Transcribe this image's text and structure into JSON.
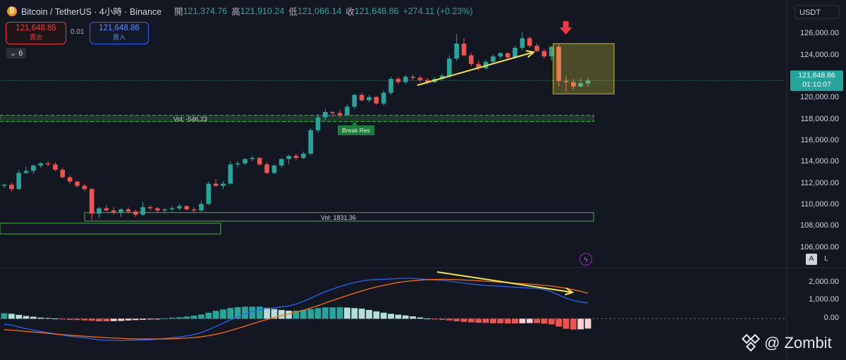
{
  "header": {
    "symbol": "Bitcoin / TetherUS · 4小時 · Binance",
    "open_label": "開",
    "open": "121,374.76",
    "high_label": "高",
    "high": "121,910.24",
    "low_label": "低",
    "low": "121,066.14",
    "close_label": "收",
    "close": "121,648.86",
    "change": "+274.11 (+0.23%)"
  },
  "trade": {
    "sell_price": "121,648.85",
    "sell_label": "賣出",
    "spread": "0.01",
    "buy_price": "121,648.86",
    "buy_label": "買入"
  },
  "indicators_count": "6",
  "currency": "USDT",
  "last_price": {
    "price": "121,648.86",
    "countdown": "01:10:07"
  },
  "scale_buttons": {
    "auto": "A",
    "log": "L"
  },
  "watermark": "@ Zombit",
  "colors": {
    "up": "#26a69a",
    "down": "#ef5350",
    "macd": "#2962ff",
    "signal": "#ff6d00",
    "annotation": "#f5e642",
    "zone": "#4caf50"
  },
  "chart_data": [
    {
      "type": "candlestick",
      "title": "Bitcoin / TetherUS · 4小時 · Binance",
      "y_ticks": [
        106000,
        108000,
        110000,
        112000,
        114000,
        116000,
        118000,
        120000,
        122000,
        124000,
        126000
      ],
      "y_tick_labels": [
        "106,000.00",
        "108,000.00",
        "110,000.00",
        "112,000.00",
        "114,000.00",
        "116,000.00",
        "118,000.00",
        "120,000.00",
        "122,000.00",
        "124,000.00",
        "126,000.00"
      ],
      "ylim": [
        104800,
        127200
      ],
      "last_price": 121648.86,
      "ohlc": [
        [
          111800,
          112000,
          111600,
          111900
        ],
        [
          111900,
          112100,
          111300,
          111500
        ],
        [
          111500,
          113300,
          111400,
          113000
        ],
        [
          113000,
          113600,
          112900,
          113200
        ],
        [
          113200,
          113800,
          112900,
          113700
        ],
        [
          113700,
          114000,
          113500,
          113900
        ],
        [
          113900,
          114100,
          113600,
          113800
        ],
        [
          113800,
          114000,
          113200,
          113300
        ],
        [
          113300,
          113500,
          112500,
          112600
        ],
        [
          112600,
          112800,
          112000,
          112200
        ],
        [
          112200,
          112300,
          111600,
          111800
        ],
        [
          111800,
          112000,
          111300,
          111500
        ],
        [
          111500,
          111600,
          108600,
          109200
        ],
        [
          109200,
          109800,
          108800,
          109700
        ],
        [
          109700,
          110000,
          109400,
          109500
        ],
        [
          109500,
          109800,
          109100,
          109300
        ],
        [
          109300,
          109700,
          108900,
          109600
        ],
        [
          109600,
          109800,
          109200,
          109400
        ],
        [
          109400,
          109600,
          108900,
          109100
        ],
        [
          109100,
          110300,
          109000,
          109800
        ],
        [
          109800,
          110000,
          109500,
          109700
        ],
        [
          109700,
          109800,
          109300,
          109500
        ],
        [
          109500,
          109700,
          109200,
          109600
        ],
        [
          109600,
          109900,
          109400,
          109700
        ],
        [
          109700,
          110100,
          109500,
          109900
        ],
        [
          109900,
          110000,
          109500,
          109600
        ],
        [
          109600,
          109800,
          109300,
          109500
        ],
        [
          109500,
          110400,
          109400,
          110100
        ],
        [
          110100,
          112200,
          110000,
          112000
        ],
        [
          112000,
          112400,
          111700,
          111800
        ],
        [
          111800,
          112200,
          111500,
          112000
        ],
        [
          112000,
          114100,
          111900,
          113800
        ],
        [
          113800,
          114100,
          113500,
          113900
        ],
        [
          113900,
          114400,
          113700,
          114300
        ],
        [
          114300,
          114600,
          114100,
          114400
        ],
        [
          114400,
          114500,
          113700,
          113800
        ],
        [
          113800,
          114000,
          112900,
          113000
        ],
        [
          113000,
          113800,
          112900,
          113700
        ],
        [
          113700,
          114400,
          113500,
          114300
        ],
        [
          114300,
          114700,
          113800,
          114600
        ],
        [
          114600,
          114800,
          114200,
          114400
        ],
        [
          114400,
          115000,
          114300,
          114800
        ],
        [
          114800,
          117200,
          114700,
          117000
        ],
        [
          117000,
          118500,
          116800,
          118200
        ],
        [
          118200,
          119000,
          117900,
          118700
        ],
        [
          118700,
          118800,
          118300,
          118600
        ],
        [
          118600,
          118900,
          118200,
          118400
        ],
        [
          118400,
          119400,
          118300,
          119200
        ],
        [
          119200,
          120400,
          119000,
          120300
        ],
        [
          120300,
          120500,
          119700,
          119800
        ],
        [
          119800,
          120300,
          119600,
          120100
        ],
        [
          120100,
          120200,
          119400,
          119500
        ],
        [
          119500,
          120700,
          119300,
          120500
        ],
        [
          120500,
          122000,
          120300,
          121800
        ],
        [
          121800,
          122000,
          121300,
          121500
        ],
        [
          121500,
          122200,
          121300,
          122000
        ],
        [
          122000,
          122200,
          121700,
          121900
        ],
        [
          121900,
          122100,
          121500,
          121700
        ],
        [
          121700,
          121900,
          121300,
          121500
        ],
        [
          121500,
          122000,
          121400,
          121800
        ],
        [
          121800,
          122300,
          121600,
          122100
        ],
        [
          122100,
          124000,
          121900,
          123700
        ],
        [
          123700,
          126000,
          123500,
          125100
        ],
        [
          125100,
          125600,
          123900,
          124000
        ],
        [
          124000,
          124200,
          123000,
          123200
        ],
        [
          123200,
          123500,
          122600,
          122800
        ],
        [
          122800,
          123600,
          122700,
          123400
        ],
        [
          123400,
          124100,
          123200,
          123900
        ],
        [
          123900,
          124300,
          123600,
          124200
        ],
        [
          124200,
          124300,
          123600,
          123800
        ],
        [
          123800,
          124900,
          123700,
          124700
        ],
        [
          124700,
          126200,
          124500,
          125600
        ],
        [
          125600,
          125800,
          124700,
          124900
        ],
        [
          124900,
          125100,
          124300,
          124400
        ],
        [
          124400,
          124600,
          123700,
          123900
        ],
        [
          123900,
          124900,
          123500,
          124800
        ],
        [
          124800,
          125100,
          121100,
          121600
        ],
        [
          121600,
          122100,
          120600,
          121500
        ],
        [
          121500,
          121800,
          120800,
          121100
        ],
        [
          121100,
          121900,
          121000,
          121400
        ],
        [
          121374.76,
          121910.24,
          121066.14,
          121648.86
        ]
      ],
      "zones": [
        {
          "label": "Vol: -546.23",
          "y": [
            117800,
            118400
          ]
        },
        {
          "label": "Vol: 1831.36",
          "y": [
            108500,
            109300
          ]
        },
        {
          "label": "",
          "y": [
            107300,
            108300
          ]
        }
      ],
      "annotations": [
        "Break Res"
      ]
    },
    {
      "type": "macd",
      "y_ticks": [
        0,
        1000,
        2000
      ],
      "y_tick_labels": [
        "0.00",
        "1,000.00",
        "2,000.00"
      ],
      "ylim": [
        -1450,
        2600
      ],
      "series": [
        {
          "values": [
            -300,
            -350,
            -450,
            -550,
            -620,
            -700,
            -760,
            -830,
            -900,
            -960,
            -1000,
            -1050,
            -1100,
            -1150,
            -1180,
            -1190,
            -1200,
            -1190,
            -1180,
            -1170,
            -1150,
            -1120,
            -1080,
            -1040,
            -1000,
            -940,
            -860,
            -760,
            -600,
            -420,
            -250,
            -60,
            100,
            250,
            380,
            500,
            560,
            600,
            650,
            700,
            800,
            950,
            1120,
            1300,
            1480,
            1620,
            1760,
            1880,
            1980,
            2070,
            2120,
            2140,
            2160,
            2180,
            2200,
            2220,
            2210,
            2180,
            2150,
            2120,
            2100,
            2060,
            2000,
            1950,
            1900,
            1860,
            1820,
            1800,
            1780,
            1750,
            1720,
            1700,
            1680,
            1660,
            1600,
            1480,
            1300,
            1120,
            1000,
            920,
            860
          ]
        },
        {
          "values": [
            -600,
            -620,
            -660,
            -700,
            -730,
            -760,
            -800,
            -840,
            -870,
            -900,
            -930,
            -960,
            -990,
            -1010,
            -1040,
            -1060,
            -1080,
            -1095,
            -1105,
            -1110,
            -1110,
            -1110,
            -1105,
            -1095,
            -1080,
            -1060,
            -1030,
            -990,
            -930,
            -850,
            -760,
            -650,
            -530,
            -410,
            -280,
            -160,
            -40,
            70,
            170,
            260,
            360,
            470,
            590,
            720,
            860,
            1000,
            1130,
            1270,
            1400,
            1520,
            1640,
            1740,
            1830,
            1910,
            1980,
            2040,
            2080,
            2110,
            2140,
            2150,
            2160,
            2150,
            2140,
            2120,
            2100,
            2080,
            2050,
            2030,
            2000,
            1980,
            1950,
            1920,
            1900,
            1870,
            1830,
            1790,
            1730,
            1670,
            1590,
            1500,
            1400
          ]
        }
      ],
      "histogram": [
        300,
        270,
        210,
        150,
        110,
        60,
        40,
        10,
        -30,
        -60,
        -70,
        -90,
        -110,
        -140,
        -140,
        -130,
        -120,
        -95,
        -75,
        -60,
        -40,
        -10,
        25,
        55,
        80,
        120,
        170,
        230,
        330,
        430,
        510,
        590,
        630,
        660,
        660,
        660,
        600,
        530,
        480,
        440,
        440,
        480,
        530,
        580,
        620,
        620,
        630,
        610,
        580,
        550,
        480,
        400,
        330,
        270,
        220,
        180,
        130,
        70,
        10,
        -30,
        -60,
        -90,
        -140,
        -170,
        -200,
        -220,
        -230,
        -250,
        -250,
        -260,
        -260,
        -250,
        -240,
        -240,
        -270,
        -310,
        -430,
        -550,
        -590,
        -580,
        -540
      ]
    }
  ]
}
